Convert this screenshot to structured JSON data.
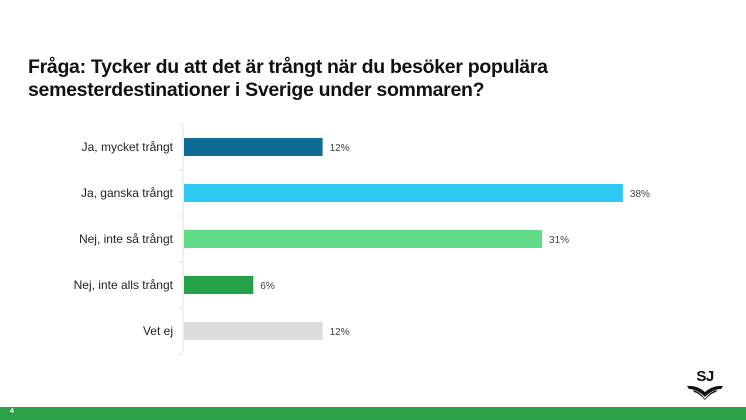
{
  "title": "Fråga: Tycker du att det är trångt när du besöker populära semesterdestinationer i Sverige under sommaren?",
  "page_number": "4",
  "logo_text": "SJ",
  "colors": {
    "footer": "#2aa147",
    "axis": "#e0e0e0"
  },
  "chart_data": {
    "type": "bar",
    "orientation": "horizontal",
    "title": "Fråga: Tycker du att det är trångt när du besöker populära semesterdestinationer i Sverige under sommaren?",
    "categories": [
      "Ja, mycket trångt",
      "Ja, ganska trångt",
      "Nej, inte så trångt",
      "Nej, inte alls trångt",
      "Vet ej"
    ],
    "values": [
      12,
      38,
      31,
      6,
      12
    ],
    "value_labels": [
      "12%",
      "38%",
      "31%",
      "6%",
      "12%"
    ],
    "bar_colors": [
      "#0e6b93",
      "#2ec8f5",
      "#5fdc85",
      "#25a247",
      "#dcdcdc"
    ],
    "xlabel": "",
    "ylabel": "",
    "xlim": [
      0,
      38
    ],
    "grid": false,
    "legend": "none"
  }
}
